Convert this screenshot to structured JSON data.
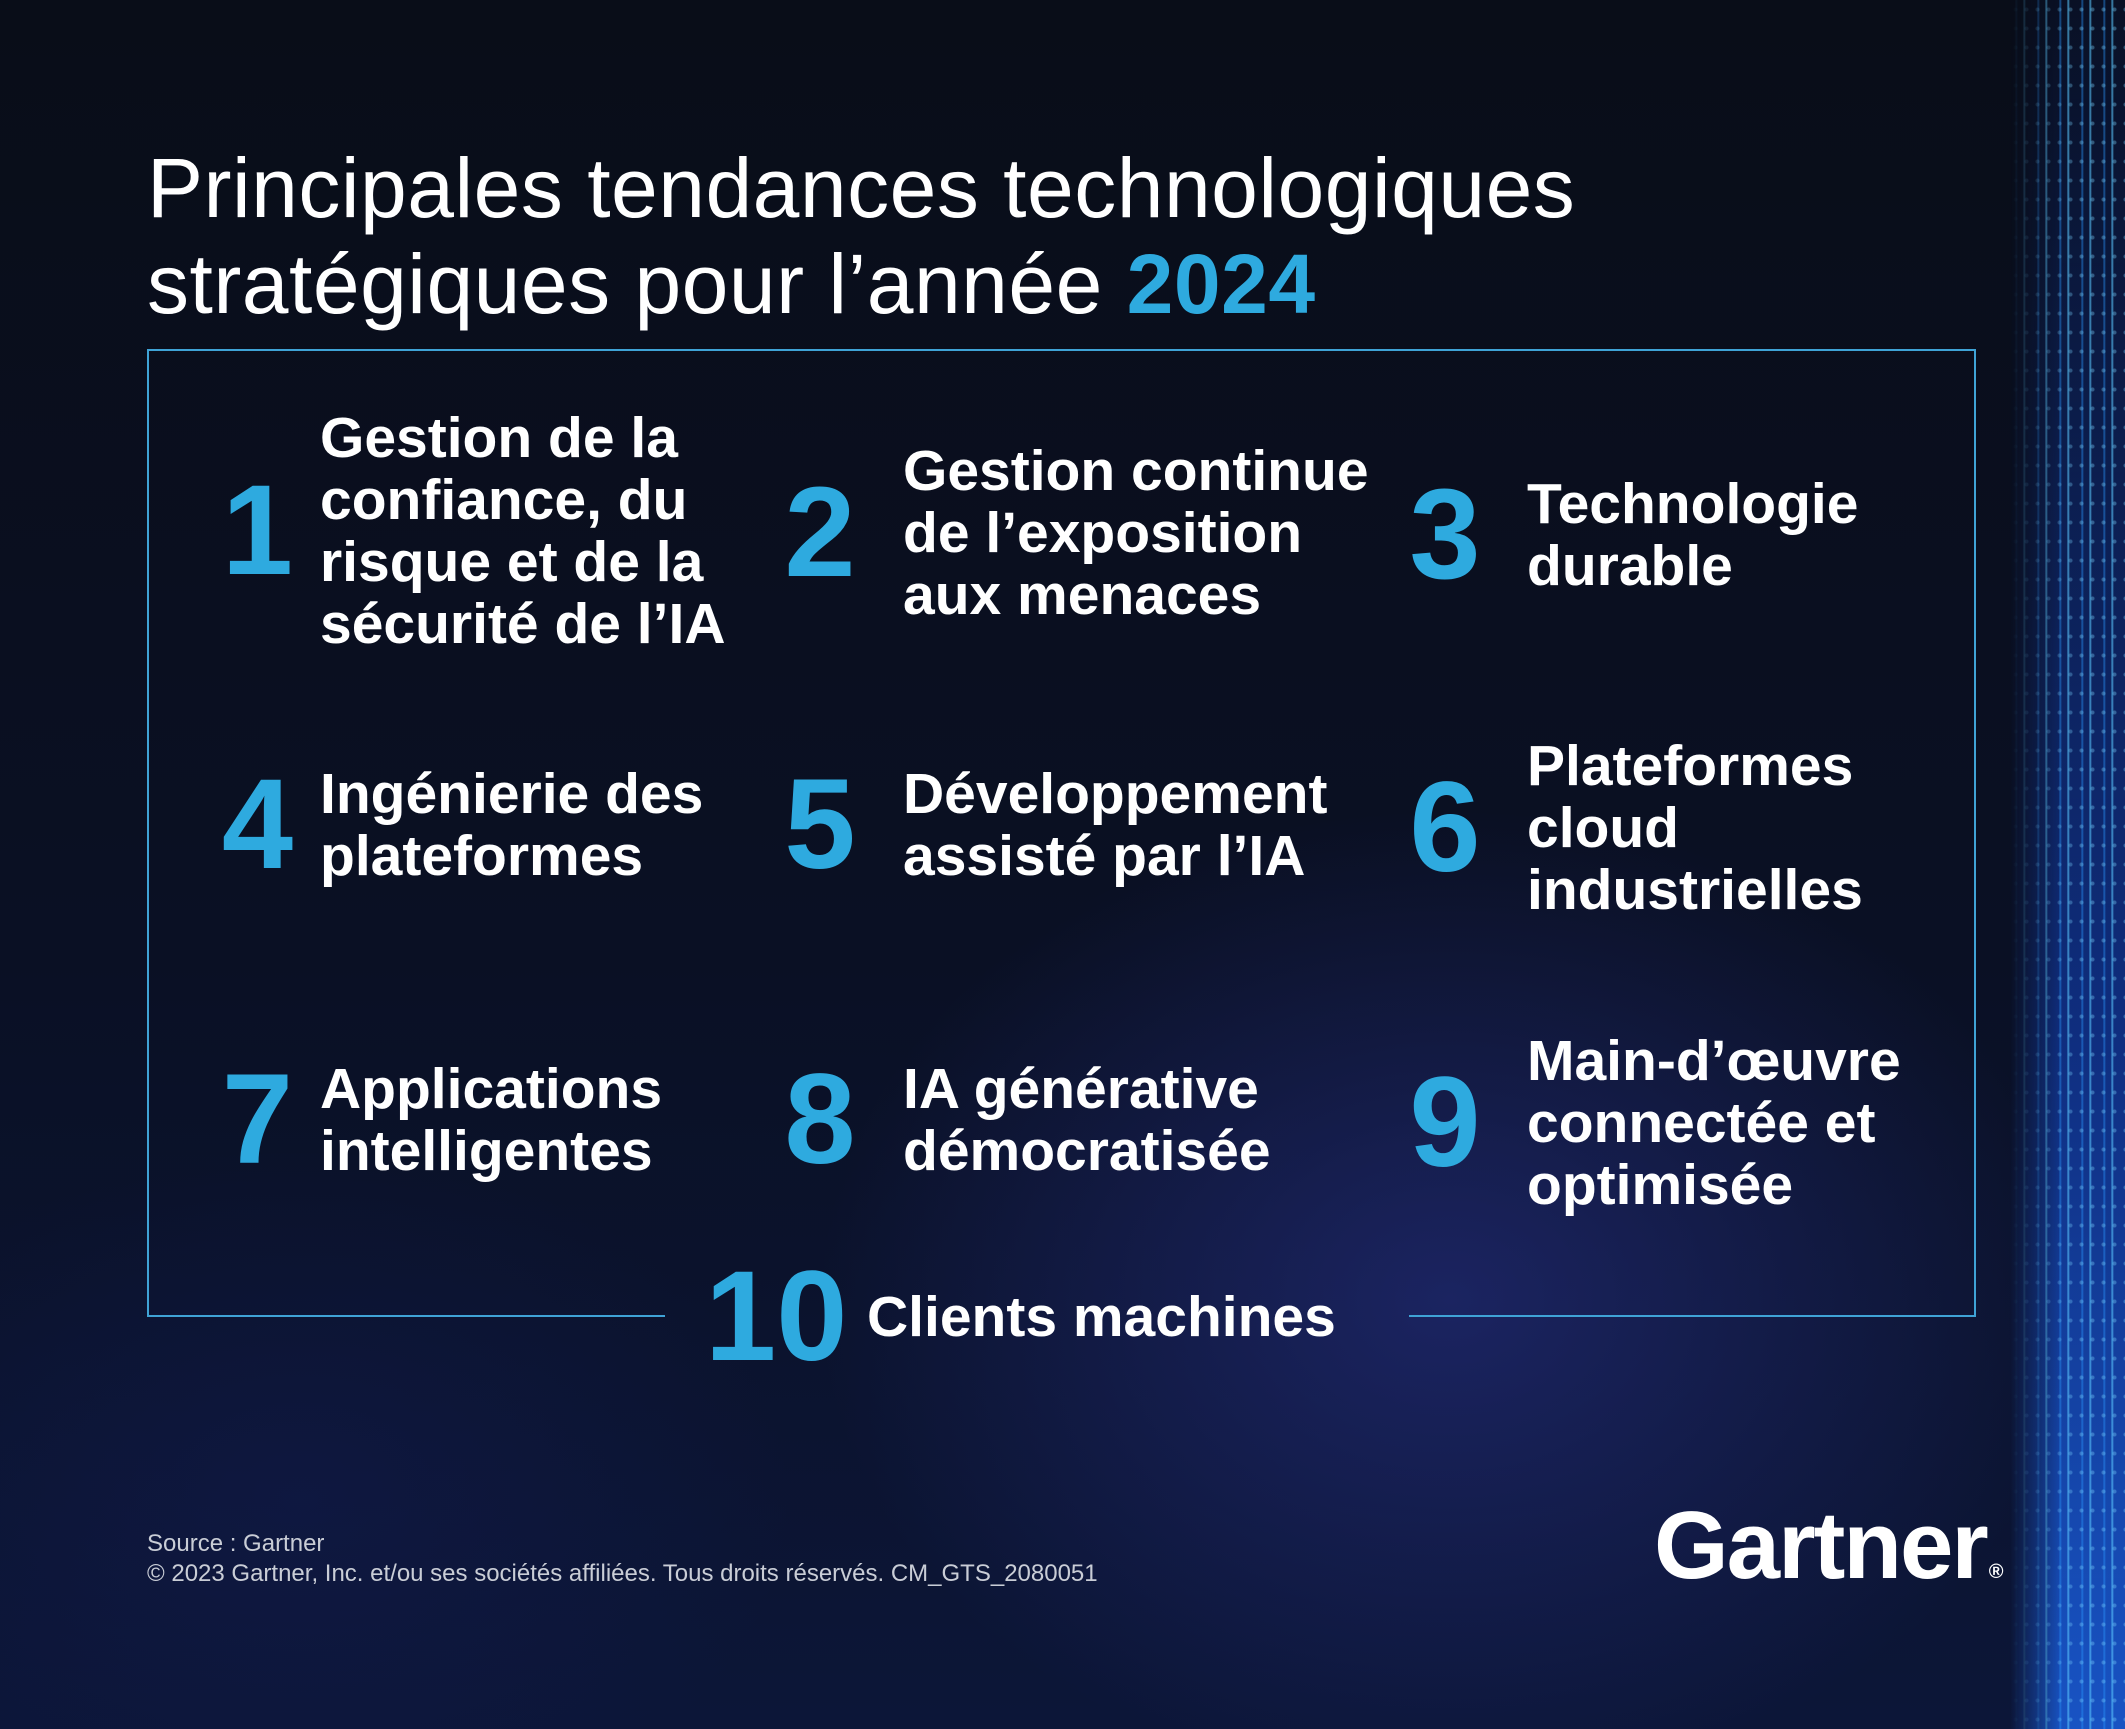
{
  "title": {
    "line1": "Principales tendances technologiques",
    "line2": "stratégiques pour l’année",
    "year": "2024"
  },
  "trends": [
    {
      "number": "1",
      "label": "Gestion de la confiance, du risque et de la sécurité de l’IA"
    },
    {
      "number": "2",
      "label": "Gestion continue de l’exposition aux menaces"
    },
    {
      "number": "3",
      "label": "Technologie durable"
    },
    {
      "number": "4",
      "label": "Ingénierie des plateformes"
    },
    {
      "number": "5",
      "label": "Développement assisté par l’IA"
    },
    {
      "number": "6",
      "label": "Plateformes cloud industrielles"
    },
    {
      "number": "7",
      "label": "Applications intelligentes"
    },
    {
      "number": "8",
      "label": "IA générative démocratisée"
    },
    {
      "number": "9",
      "label": "Main-d’œuvre connectée et optimisée"
    },
    {
      "number": "10",
      "label": "Clients machines"
    }
  ],
  "footer": {
    "source": "Source : Gartner",
    "copyright": "© 2023 Gartner, Inc. et/ou ses sociétés affiliées. Tous droits réservés. CM_GTS_2080051"
  },
  "brand": {
    "logo_text": "Gartner",
    "registered_mark": "®"
  },
  "colors": {
    "accent": "#2eaadf",
    "background": "#070c1a",
    "frame": "#3fa3d6",
    "text": "#ffffff"
  }
}
